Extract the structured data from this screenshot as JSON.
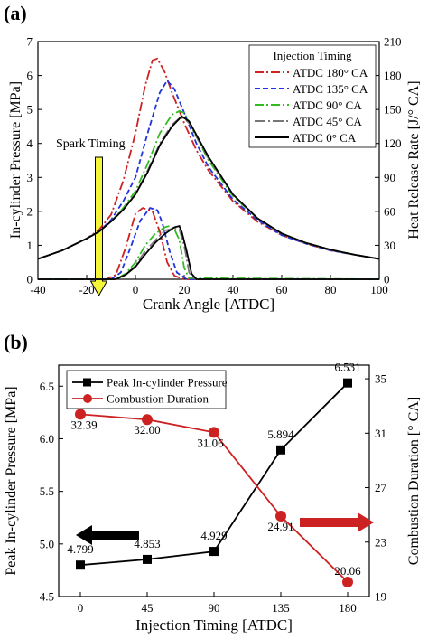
{
  "colors": {
    "atdc180": "#cc2222",
    "atdc135": "#2233dd",
    "atdc90": "#33bb22",
    "atdc45": "#777777",
    "atdc0": "#000000",
    "peak": "#000000",
    "duration": "#cc2222",
    "spark_arrow": "#f5f53a"
  },
  "chart_data": [
    {
      "panel_label": "(a)",
      "type": "line",
      "xlabel": "Crank Angle [ATDC]",
      "ylabel_left": "In-cylinder Pressure [MPa]",
      "ylabel_right": "Heat Release Rate [J/° CA]",
      "xlim": [
        -40,
        100
      ],
      "ylim_left": [
        0,
        7
      ],
      "ylim_right": [
        0,
        210
      ],
      "xticks": [
        "-40",
        "-20",
        "0",
        "20",
        "40",
        "60",
        "80",
        "100"
      ],
      "yticks_left": [
        "0",
        "1",
        "2",
        "3",
        "4",
        "5",
        "6",
        "7"
      ],
      "yticks_right": [
        "0",
        "30",
        "60",
        "90",
        "120",
        "150",
        "180",
        "210"
      ],
      "legend_title": "Injection Timing",
      "legend_position": "top-right",
      "annotation": "Spark Timing",
      "spark_timing_x": -15,
      "pressure_series": [
        {
          "name": "ATDC 180° CA",
          "color_key": "atdc180",
          "dash": "10,3,2,3",
          "points": [
            [
              -40,
              0.6
            ],
            [
              -30,
              0.85
            ],
            [
              -20,
              1.2
            ],
            [
              -15,
              1.45
            ],
            [
              -10,
              1.9
            ],
            [
              -5,
              2.9
            ],
            [
              0,
              4.3
            ],
            [
              4,
              5.7
            ],
            [
              7,
              6.45
            ],
            [
              9,
              6.5
            ],
            [
              12,
              6.1
            ],
            [
              15,
              5.5
            ],
            [
              20,
              4.6
            ],
            [
              25,
              3.8
            ],
            [
              30,
              3.2
            ],
            [
              40,
              2.3
            ],
            [
              50,
              1.7
            ],
            [
              60,
              1.3
            ],
            [
              70,
              1.05
            ],
            [
              80,
              0.85
            ],
            [
              90,
              0.72
            ],
            [
              100,
              0.6
            ]
          ]
        },
        {
          "name": "ATDC 135° CA",
          "color_key": "atdc135",
          "dash": "6,3",
          "points": [
            [
              -40,
              0.6
            ],
            [
              -30,
              0.85
            ],
            [
              -20,
              1.2
            ],
            [
              -15,
              1.4
            ],
            [
              -10,
              1.75
            ],
            [
              -5,
              2.3
            ],
            [
              0,
              3.0
            ],
            [
              5,
              4.3
            ],
            [
              10,
              5.5
            ],
            [
              13,
              5.85
            ],
            [
              16,
              5.6
            ],
            [
              20,
              4.9
            ],
            [
              25,
              4.0
            ],
            [
              30,
              3.3
            ],
            [
              40,
              2.35
            ],
            [
              50,
              1.75
            ],
            [
              60,
              1.3
            ],
            [
              70,
              1.05
            ],
            [
              80,
              0.85
            ],
            [
              90,
              0.72
            ],
            [
              100,
              0.6
            ]
          ]
        },
        {
          "name": "ATDC 90° CA",
          "color_key": "atdc90",
          "dash": "10,3,2,3",
          "points": [
            [
              -40,
              0.6
            ],
            [
              -30,
              0.85
            ],
            [
              -20,
              1.2
            ],
            [
              -15,
              1.4
            ],
            [
              -10,
              1.7
            ],
            [
              -5,
              2.1
            ],
            [
              0,
              2.6
            ],
            [
              5,
              3.4
            ],
            [
              10,
              4.3
            ],
            [
              15,
              4.85
            ],
            [
              18,
              4.95
            ],
            [
              20,
              4.9
            ],
            [
              25,
              4.2
            ],
            [
              30,
              3.5
            ],
            [
              40,
              2.45
            ],
            [
              50,
              1.8
            ],
            [
              60,
              1.35
            ],
            [
              70,
              1.07
            ],
            [
              80,
              0.87
            ],
            [
              90,
              0.72
            ],
            [
              100,
              0.6
            ]
          ]
        },
        {
          "name": "ATDC 45° CA",
          "color_key": "atdc45",
          "dash": "12,3,2,3",
          "points": [
            [
              -40,
              0.6
            ],
            [
              -30,
              0.85
            ],
            [
              -20,
              1.2
            ],
            [
              -15,
              1.4
            ],
            [
              -10,
              1.7
            ],
            [
              -5,
              2.05
            ],
            [
              0,
              2.5
            ],
            [
              5,
              3.2
            ],
            [
              10,
              4.0
            ],
            [
              15,
              4.55
            ],
            [
              19,
              4.8
            ],
            [
              22,
              4.6
            ],
            [
              25,
              4.2
            ],
            [
              30,
              3.55
            ],
            [
              40,
              2.5
            ],
            [
              50,
              1.8
            ],
            [
              60,
              1.35
            ],
            [
              70,
              1.07
            ],
            [
              80,
              0.87
            ],
            [
              90,
              0.72
            ],
            [
              100,
              0.6
            ]
          ]
        },
        {
          "name": "ATDC 0° CA",
          "color_key": "atdc0",
          "dash": "",
          "points": [
            [
              -40,
              0.6
            ],
            [
              -30,
              0.85
            ],
            [
              -20,
              1.2
            ],
            [
              -15,
              1.4
            ],
            [
              -10,
              1.7
            ],
            [
              -5,
              2.05
            ],
            [
              0,
              2.5
            ],
            [
              5,
              3.15
            ],
            [
              10,
              3.95
            ],
            [
              15,
              4.5
            ],
            [
              19,
              4.8
            ],
            [
              22,
              4.65
            ],
            [
              25,
              4.25
            ],
            [
              30,
              3.6
            ],
            [
              40,
              2.5
            ],
            [
              50,
              1.8
            ],
            [
              60,
              1.35
            ],
            [
              70,
              1.07
            ],
            [
              80,
              0.87
            ],
            [
              90,
              0.72
            ],
            [
              100,
              0.6
            ]
          ]
        }
      ],
      "heat_release_series": [
        {
          "name": "ATDC 180° CA",
          "color_key": "atdc180",
          "dash": "10,3,2,3",
          "points": [
            [
              -40,
              0
            ],
            [
              -12,
              0
            ],
            [
              -8,
              4
            ],
            [
              -4,
              28
            ],
            [
              0,
              58
            ],
            [
              3,
              63
            ],
            [
              7,
              60
            ],
            [
              10,
              42
            ],
            [
              13,
              15
            ],
            [
              16,
              3
            ],
            [
              20,
              0
            ],
            [
              100,
              0
            ]
          ]
        },
        {
          "name": "ATDC 135° CA",
          "color_key": "atdc135",
          "dash": "6,3",
          "points": [
            [
              -40,
              0
            ],
            [
              -10,
              0
            ],
            [
              -6,
              6
            ],
            [
              -2,
              28
            ],
            [
              2,
              52
            ],
            [
              6,
              63
            ],
            [
              9,
              61
            ],
            [
              11,
              50
            ],
            [
              14,
              25
            ],
            [
              17,
              6
            ],
            [
              21,
              0
            ],
            [
              100,
              0
            ]
          ]
        },
        {
          "name": "ATDC 90° CA",
          "color_key": "atdc90",
          "dash": "10,3,2,3",
          "points": [
            [
              -40,
              0
            ],
            [
              -8,
              0
            ],
            [
              -4,
              5
            ],
            [
              0,
              15
            ],
            [
              4,
              30
            ],
            [
              8,
              40
            ],
            [
              12,
              46
            ],
            [
              14,
              47
            ],
            [
              16,
              44
            ],
            [
              18,
              35
            ],
            [
              20,
              10
            ],
            [
              22,
              1
            ],
            [
              100,
              0
            ]
          ]
        },
        {
          "name": "ATDC 45° CA",
          "color_key": "atdc45",
          "dash": "12,3,2,3",
          "points": [
            [
              -40,
              0
            ],
            [
              -8,
              0
            ],
            [
              -4,
              4
            ],
            [
              0,
              12
            ],
            [
              4,
              25
            ],
            [
              8,
              34
            ],
            [
              12,
              43
            ],
            [
              16,
              45
            ],
            [
              18,
              44
            ],
            [
              20,
              30
            ],
            [
              22,
              6
            ],
            [
              24,
              0
            ],
            [
              100,
              0
            ]
          ]
        },
        {
          "name": "ATDC 0° CA",
          "color_key": "atdc0",
          "dash": "",
          "points": [
            [
              -40,
              0
            ],
            [
              -8,
              0
            ],
            [
              -4,
              4
            ],
            [
              0,
              11
            ],
            [
              4,
              22
            ],
            [
              8,
              32
            ],
            [
              12,
              40
            ],
            [
              16,
              46
            ],
            [
              18,
              47
            ],
            [
              19,
              42
            ],
            [
              21,
              25
            ],
            [
              23,
              5
            ],
            [
              25,
              0
            ],
            [
              100,
              0
            ]
          ]
        }
      ]
    },
    {
      "panel_label": "(b)",
      "type": "line",
      "xlabel": "Injection Timing [ATDC]",
      "ylabel_left": "Peak In-cylinder Pressure [MPa]",
      "ylabel_right": "Combustion Duration [° CA]",
      "categories": [
        "0",
        "45",
        "90",
        "135",
        "180"
      ],
      "x": [
        0,
        45,
        90,
        135,
        180
      ],
      "ylim_left": [
        4.5,
        6.7
      ],
      "ylim_right": [
        19,
        36
      ],
      "yticks_left": [
        "4.5",
        "5.0",
        "5.5",
        "6.0",
        "6.5"
      ],
      "yticks_right": [
        "19",
        "23",
        "27",
        "31",
        "35"
      ],
      "legend_position": "top-left",
      "series": [
        {
          "name": "Peak In-cylinder Pressure",
          "axis": "left",
          "color_key": "peak",
          "marker": "square",
          "values": [
            4.799,
            4.853,
            4.929,
            5.894,
            6.531
          ],
          "labels": [
            "4.799",
            "4.853",
            "4.929",
            "5.894",
            "6.531"
          ]
        },
        {
          "name": "Combustion Duration",
          "axis": "right",
          "color_key": "duration",
          "marker": "circle",
          "values": [
            32.39,
            32.0,
            31.06,
            24.91,
            20.06
          ],
          "labels": [
            "32.39",
            "32.00",
            "31.06",
            "24.91",
            "20.06"
          ]
        }
      ]
    }
  ]
}
